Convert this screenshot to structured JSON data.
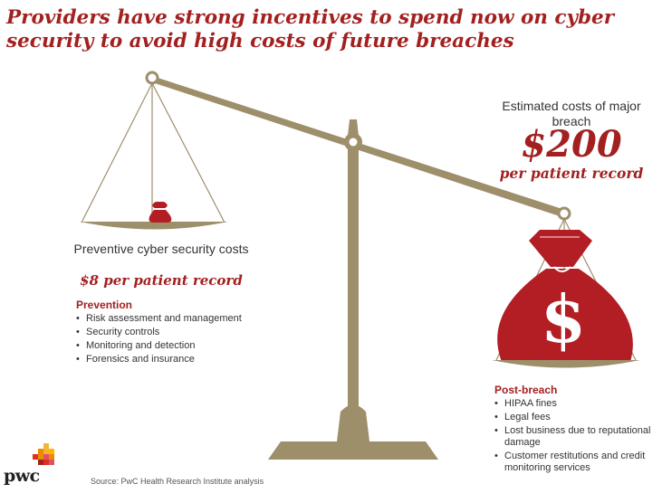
{
  "title": "Providers have strong incentives to spend now on cyber security to avoid high costs of future breaches",
  "left": {
    "label": "Preventive cyber security costs",
    "price": "$8 per patient record",
    "list_title": "Prevention",
    "items": [
      "Risk assessment and management",
      "Security controls",
      "Monitoring and detection",
      "Forensics and insurance"
    ]
  },
  "right": {
    "label": "Estimated costs of major breach",
    "big_price": "$200",
    "price_unit": "per patient record",
    "bag_symbol": "$",
    "list_title": "Post-breach",
    "items": [
      "HIPAA fines",
      "Legal fees",
      "Lost business due to reputational damage",
      "Customer restitutions and credit monitoring services"
    ]
  },
  "source": "Source: PwC Health Research Institute analysis",
  "logo": "pwc",
  "colors": {
    "accent": "#a32020",
    "scale": "#9e8f6b",
    "bag": "#b21e24"
  }
}
